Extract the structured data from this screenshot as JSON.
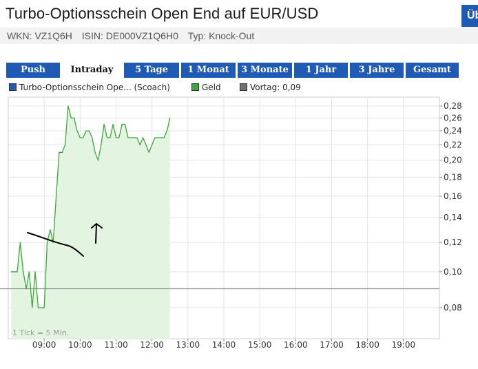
{
  "header": {
    "title": "Turbo-Optionsschein Open End auf EUR/USD",
    "corner_button": "Üb",
    "wkn": "WKN: VZ1Q6H",
    "isin": "ISIN: DE000VZ1Q6H0",
    "typ": "Typ: Knock-Out"
  },
  "tabs": [
    {
      "label": "Push",
      "active": false
    },
    {
      "label": "Intraday",
      "active": true
    },
    {
      "label": "5 Tage",
      "active": false
    },
    {
      "label": "1 Monat",
      "active": false
    },
    {
      "label": "3 Monate",
      "active": false
    },
    {
      "label": "1 Jahr",
      "active": false
    },
    {
      "label": "3 Jahre",
      "active": false
    },
    {
      "label": "Gesamt",
      "active": false
    }
  ],
  "legend": [
    {
      "label": "Turbo-Optionsschein Ope... (Scoach)",
      "color": "#1f5bb5"
    },
    {
      "label": "Geld",
      "color": "#3aa63a"
    },
    {
      "label": "Vortag: 0,09",
      "color": "#707070"
    }
  ],
  "colors": {
    "accent": "#1f5bb5",
    "line": "#3aa63a",
    "fill": "#e3f5e0",
    "previous_close": "#8a8a8a",
    "annotation": "#000000"
  },
  "chart_data": {
    "type": "area",
    "x_tick_labels": [
      "09:00",
      "10:00",
      "11:00",
      "12:00",
      "13:00",
      "14:00",
      "15:00",
      "16:00",
      "17:00",
      "18:00",
      "19:00"
    ],
    "y_tick_labels": [
      "0,28",
      "0,26",
      "0,24",
      "0,22",
      "0,20",
      "0,18",
      "0,16",
      "0,14",
      "0,12",
      "0,10",
      "0,08"
    ],
    "y_ticks": [
      0.28,
      0.26,
      0.24,
      0.22,
      0.2,
      0.18,
      0.16,
      0.14,
      0.12,
      0.1,
      0.08
    ],
    "y_scale": "log",
    "ylim": [
      0.066,
      0.296
    ],
    "xlim": [
      "08:00",
      "20:00"
    ],
    "grid": true,
    "footnote": "1 Tick = 5 Min.",
    "previous_close": 0.09,
    "series": [
      {
        "name": "Geld",
        "x": [
          "08:05",
          "08:10",
          "08:15",
          "08:20",
          "08:25",
          "08:30",
          "08:35",
          "08:40",
          "08:45",
          "08:50",
          "08:55",
          "09:00",
          "09:05",
          "09:10",
          "09:15",
          "09:20",
          "09:25",
          "09:30",
          "09:35",
          "09:40",
          "09:45",
          "09:50",
          "09:55",
          "10:00",
          "10:05",
          "10:10",
          "10:15",
          "10:20",
          "10:25",
          "10:30",
          "10:35",
          "10:40",
          "10:45",
          "10:50",
          "10:55",
          "11:00",
          "11:05",
          "11:10",
          "11:15",
          "11:20",
          "11:25",
          "11:30",
          "11:35",
          "11:40",
          "11:45",
          "11:50",
          "11:55",
          "12:00",
          "12:05",
          "12:10",
          "12:15",
          "12:20",
          "12:25",
          "12:30"
        ],
        "y": [
          0.1,
          0.1,
          0.1,
          0.12,
          0.1,
          0.09,
          0.1,
          0.08,
          0.1,
          0.08,
          0.08,
          0.08,
          0.12,
          0.13,
          0.12,
          0.16,
          0.21,
          0.21,
          0.22,
          0.28,
          0.26,
          0.26,
          0.24,
          0.23,
          0.23,
          0.24,
          0.24,
          0.23,
          0.21,
          0.2,
          0.22,
          0.25,
          0.23,
          0.23,
          0.25,
          0.23,
          0.23,
          0.25,
          0.25,
          0.23,
          0.23,
          0.23,
          0.23,
          0.22,
          0.23,
          0.22,
          0.21,
          0.22,
          0.23,
          0.23,
          0.23,
          0.23,
          0.24,
          0.26
        ]
      }
    ]
  }
}
